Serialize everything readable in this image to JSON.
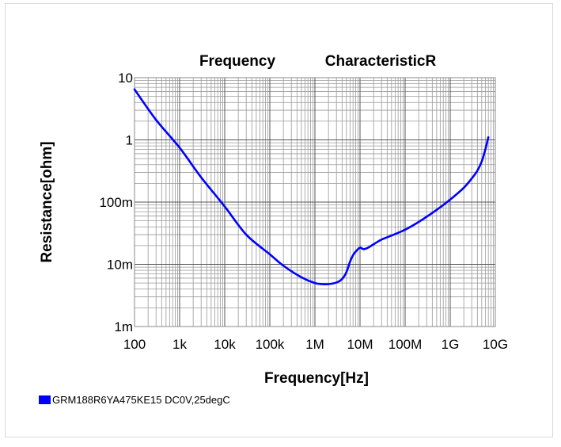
{
  "chart_data": {
    "type": "line",
    "title_left": "Frequency",
    "title_right": "CharacteristicR",
    "xlabel": "Frequency[Hz]",
    "ylabel": "Resistance[ohm]",
    "x_scale": "log",
    "y_scale": "log",
    "xlim": [
      100,
      10000000000
    ],
    "ylim": [
      0.001,
      10
    ],
    "grid": true,
    "x_ticks": [
      {
        "value": 100,
        "label": "100"
      },
      {
        "value": 1000,
        "label": "1k"
      },
      {
        "value": 10000,
        "label": "10k"
      },
      {
        "value": 100000,
        "label": "100k"
      },
      {
        "value": 1000000,
        "label": "1M"
      },
      {
        "value": 10000000,
        "label": "10M"
      },
      {
        "value": 100000000,
        "label": "100M"
      },
      {
        "value": 1000000000,
        "label": "1G"
      },
      {
        "value": 10000000000,
        "label": "10G"
      }
    ],
    "y_ticks": [
      {
        "value": 0.001,
        "label": "1m"
      },
      {
        "value": 0.01,
        "label": "10m"
      },
      {
        "value": 0.1,
        "label": "100m"
      },
      {
        "value": 1,
        "label": "1"
      },
      {
        "value": 10,
        "label": "10"
      }
    ],
    "series": [
      {
        "name": "GRM188R6YA475KE15 DC0V,25degC",
        "color": "#0000ff",
        "x": [
          100,
          300,
          1000,
          3000,
          10000,
          30000,
          100000,
          200000,
          500000,
          1000000,
          1500000,
          2000000,
          3000000,
          4000000,
          5000000,
          6000000,
          7000000,
          8000000,
          10000000,
          12000000,
          15000000,
          20000000,
          30000000,
          50000000,
          100000000,
          200000000,
          500000000,
          1000000000,
          2000000000,
          3000000000,
          4000000000,
          5000000000,
          6000000000,
          7000000000
        ],
        "y": [
          6.5,
          2.1,
          0.75,
          0.25,
          0.085,
          0.03,
          0.0145,
          0.0095,
          0.0062,
          0.005,
          0.0048,
          0.0048,
          0.0051,
          0.0058,
          0.0075,
          0.011,
          0.014,
          0.016,
          0.0185,
          0.0175,
          0.0185,
          0.021,
          0.025,
          0.029,
          0.036,
          0.048,
          0.075,
          0.11,
          0.17,
          0.24,
          0.32,
          0.45,
          0.7,
          1.1
        ]
      }
    ]
  }
}
